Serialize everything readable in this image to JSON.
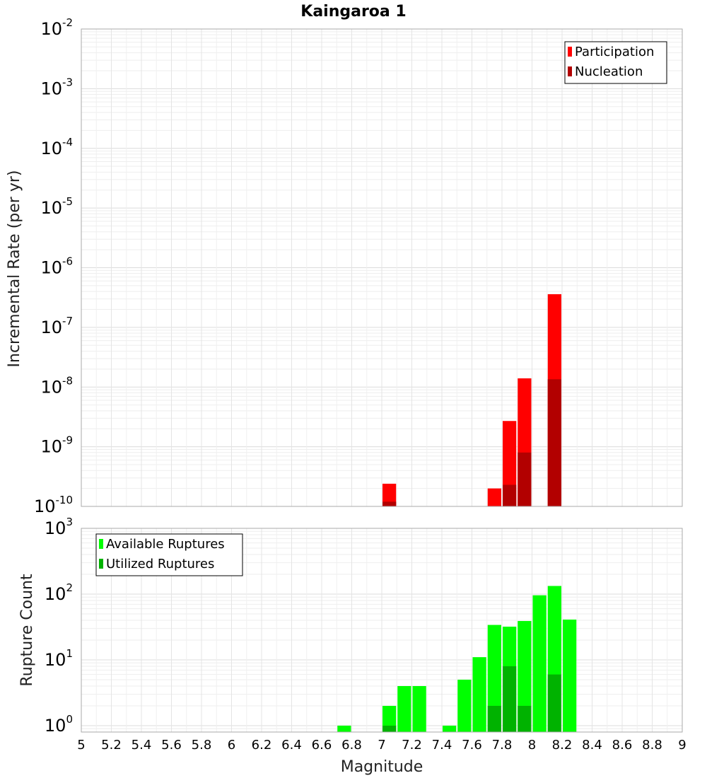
{
  "title": "Kaingaroa 1",
  "xlabel": "Magnitude",
  "x_ticks": [
    "5",
    "5.2",
    "5.4",
    "5.6",
    "5.8",
    "6",
    "6.2",
    "6.4",
    "6.6",
    "6.8",
    "7",
    "7.2",
    "7.4",
    "7.6",
    "7.8",
    "8",
    "8.2",
    "8.4",
    "8.6",
    "8.8",
    "9"
  ],
  "chart_data": [
    {
      "type": "bar",
      "ylabel": "Incremental Rate (per yr)",
      "y_scale": "log",
      "xlim": [
        5,
        9
      ],
      "ylim": [
        1e-10,
        0.01
      ],
      "y_ticks": [
        {
          "base": "10",
          "exp": "-10"
        },
        {
          "base": "10",
          "exp": "-9"
        },
        {
          "base": "10",
          "exp": "-8"
        },
        {
          "base": "10",
          "exp": "-7"
        },
        {
          "base": "10",
          "exp": "-6"
        },
        {
          "base": "10",
          "exp": "-5"
        },
        {
          "base": "10",
          "exp": "-4"
        },
        {
          "base": "10",
          "exp": "-3"
        },
        {
          "base": "10",
          "exp": "-2"
        }
      ],
      "grid": true,
      "legend_position": "top-right",
      "bar_width": 0.1,
      "series": [
        {
          "name": "Participation",
          "color": "#ff0000",
          "x": [
            7.05,
            7.75,
            7.85,
            7.95,
            8.15
          ],
          "values": [
            2.4e-10,
            2e-10,
            2.7e-09,
            1.4e-08,
            3.6e-07
          ]
        },
        {
          "name": "Nucleation",
          "color": "#b20000",
          "x": [
            7.05,
            7.85,
            7.95,
            8.15
          ],
          "values": [
            1.2e-10,
            2.3e-10,
            8e-10,
            1.35e-08
          ]
        }
      ]
    },
    {
      "type": "bar",
      "ylabel": "Rupture Count",
      "y_scale": "log",
      "xlim": [
        5,
        9
      ],
      "ylim": [
        0.8,
        1000
      ],
      "y_ticks": [
        {
          "base": "10",
          "exp": "0",
          "value": 1
        },
        {
          "base": "10",
          "exp": "1",
          "value": 10
        },
        {
          "base": "10",
          "exp": "2",
          "value": 100
        },
        {
          "base": "10",
          "exp": "3",
          "value": 1000
        }
      ],
      "grid": true,
      "legend_position": "top-left",
      "bar_width": 0.1,
      "series": [
        {
          "name": "Available Ruptures",
          "color": "#00ff00",
          "x": [
            6.75,
            7.05,
            7.15,
            7.25,
            7.45,
            7.55,
            7.65,
            7.75,
            7.85,
            7.95,
            8.05,
            8.15,
            8.25
          ],
          "values": [
            1,
            2,
            4,
            4,
            1,
            5,
            11,
            34,
            32,
            39,
            96,
            133,
            41
          ]
        },
        {
          "name": "Utilized Ruptures",
          "color": "#00b200",
          "x": [
            7.05,
            7.75,
            7.85,
            7.95,
            8.15
          ],
          "values": [
            1,
            2,
            8,
            2,
            6
          ]
        }
      ]
    }
  ]
}
